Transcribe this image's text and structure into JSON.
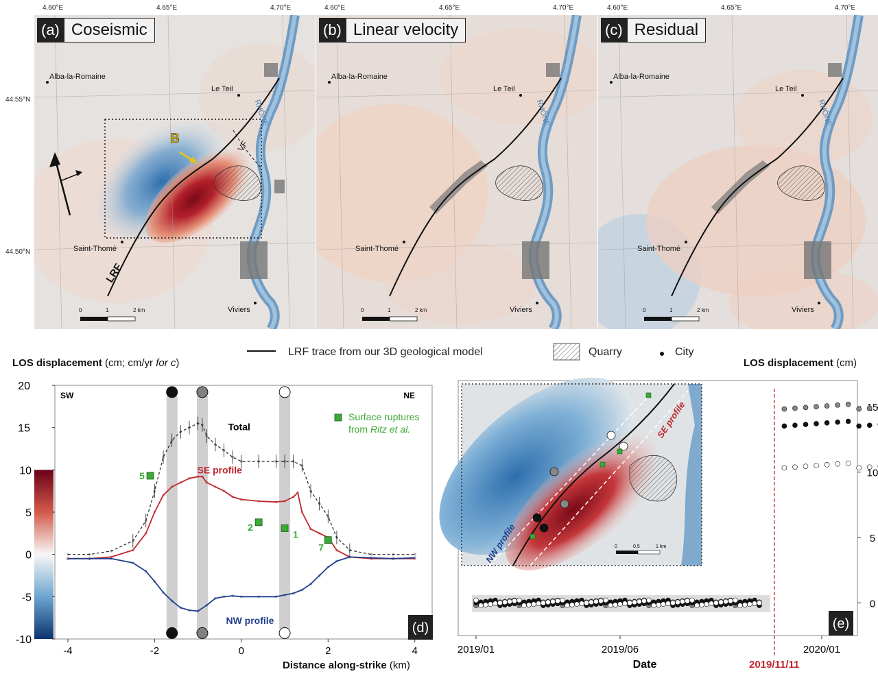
{
  "maps": {
    "lon_ticks": [
      "4.60°E",
      "4.65°E",
      "4.70°E"
    ],
    "lat_ticks": [
      "44.55°N",
      "44.50°N"
    ],
    "panels": [
      {
        "letter": "(a)",
        "title": "Coseismic"
      },
      {
        "letter": "(b)",
        "title": "Linear velocity"
      },
      {
        "letter": "(c)",
        "title": "Residual"
      }
    ],
    "cities": {
      "alba": "Alba-la-Romaine",
      "teil": "Le Teil",
      "thome": "Saint-Thomé",
      "viviers": "Viviers"
    },
    "river": "RHÔNE",
    "labels": {
      "lrf": "LRF",
      "vf": "VF",
      "b": "B"
    },
    "scale": {
      "zero": "0",
      "one": "1",
      "two": "2 km"
    }
  },
  "legend": {
    "trace": "LRF trace from our 3D geological model",
    "quarry": "Quarry",
    "city": "City"
  },
  "chart_d": {
    "panel": "(d)",
    "ylabel_main": "LOS displacement",
    "ylabel_unit": " (cm; cm/yr ",
    "ylabel_italic": "for c",
    "ylabel_close": ")",
    "xlabel_main": "Distance along-strike",
    "xlabel_unit": " (km)",
    "sw": "SW",
    "ne": "NE",
    "total": "Total",
    "se": "SE profile",
    "nw": "NW profile",
    "rupture_legend_1": "Surface ruptures",
    "rupture_legend_2": "from ",
    "rupture_legend_3": "Ritz et al.",
    "colorbar_ticks": [
      "10",
      "5",
      "0",
      "-5",
      "-10"
    ]
  },
  "chart_e": {
    "panel": "(e)",
    "ylabel_main": "LOS displacement",
    "ylabel_unit": " (cm)",
    "xlabel": "Date",
    "event": "2019/11/11",
    "inset": {
      "nw": "NW profile",
      "se": "SE profile",
      "scale": [
        "0",
        "0.5",
        "1 km"
      ]
    }
  },
  "colors": {
    "red": "#c0272d",
    "blue": "#1f3f8a",
    "green": "#3aaa35",
    "gray": "#cfcfcf"
  },
  "chart_data": [
    {
      "type": "line",
      "title": "",
      "xlabel": "Distance along-strike (km)",
      "ylabel": "LOS displacement (cm; cm/yr for c)",
      "xlim": [
        -4.3,
        4.4
      ],
      "ylim": [
        -10,
        20
      ],
      "xticks": [
        -4,
        -2,
        0,
        2,
        4
      ],
      "yticks": [
        -10,
        -5,
        0,
        5,
        10,
        15,
        20
      ],
      "series": [
        {
          "name": "Total",
          "x": [
            -4,
            -3.5,
            -3,
            -2.5,
            -2.2,
            -2,
            -1.8,
            -1.6,
            -1.4,
            -1.2,
            -1,
            -0.9,
            -0.8,
            -0.6,
            -0.4,
            -0.2,
            0,
            0.4,
            0.8,
            1,
            1.2,
            1.4,
            1.6,
            1.8,
            2,
            2.2,
            2.5,
            3,
            3.5,
            4
          ],
          "y": [
            0,
            0,
            0.4,
            1.6,
            4,
            7.5,
            11.5,
            13.5,
            14.5,
            15,
            15.5,
            15.3,
            14,
            13,
            12.3,
            11.5,
            11,
            11,
            11,
            11,
            11,
            10.5,
            7.5,
            6,
            4.5,
            2,
            0.5,
            0,
            0,
            0
          ]
        },
        {
          "name": "SE profile",
          "x": [
            -4,
            -3.5,
            -3,
            -2.5,
            -2.2,
            -2,
            -1.8,
            -1.6,
            -1.4,
            -1.2,
            -1,
            -0.9,
            -0.8,
            -0.6,
            -0.4,
            -0.2,
            0,
            0.4,
            0.8,
            1,
            1.2,
            1.3,
            1.4,
            1.6,
            1.8,
            2,
            2.2,
            2.5,
            3,
            3.5,
            4
          ],
          "y": [
            -0.5,
            -0.5,
            -0.3,
            0.5,
            2.5,
            5,
            7,
            8,
            8.5,
            9,
            9.2,
            9.2,
            8.5,
            8,
            7.5,
            6.8,
            6.5,
            6.3,
            6.2,
            6.3,
            6.8,
            7.3,
            5,
            3,
            2.5,
            2,
            0.5,
            -0.3,
            -0.5,
            -0.5,
            -0.5
          ]
        },
        {
          "name": "NW profile",
          "x": [
            -4,
            -3.5,
            -3,
            -2.5,
            -2.2,
            -2,
            -1.8,
            -1.6,
            -1.4,
            -1.2,
            -1,
            -0.8,
            -0.6,
            -0.4,
            -0.2,
            0,
            0.4,
            0.8,
            1,
            1.2,
            1.4,
            1.6,
            1.8,
            2,
            2.2,
            2.5,
            3,
            3.5,
            4
          ],
          "y": [
            -0.5,
            -0.5,
            -0.5,
            -1,
            -2,
            -3.2,
            -4.5,
            -5.5,
            -6.3,
            -6.6,
            -6.7,
            -6,
            -5.2,
            -5,
            -4.9,
            -5,
            -5,
            -5,
            -4.8,
            -4.6,
            -4.2,
            -3.5,
            -2.5,
            -1.5,
            -0.8,
            -0.3,
            -0.4,
            -0.5,
            -0.4
          ]
        }
      ],
      "ruptures": [
        {
          "label": "5",
          "x": -2.1,
          "y": 9.3
        },
        {
          "label": "2",
          "x": 0.4,
          "y": 3.8
        },
        {
          "label": "1",
          "x": 1.0,
          "y": 3.1
        },
        {
          "label": "7",
          "x": 2.0,
          "y": 1.7
        }
      ],
      "markers": [
        {
          "x": -1.6,
          "fill": "black"
        },
        {
          "x": -0.9,
          "fill": "gray"
        },
        {
          "x": 1.0,
          "fill": "white"
        }
      ]
    },
    {
      "type": "scatter",
      "title": "",
      "xlabel": "Date",
      "ylabel": "LOS displacement (cm)",
      "ylim": [
        -2.5,
        17
      ],
      "yticks": [
        0,
        5,
        10,
        15
      ],
      "xticks": [
        "2019/01",
        "2019/06",
        "2020/01"
      ],
      "event_date": "2019/11/11",
      "series": [
        {
          "name": "",
          "marker": "gray",
          "pre": 0,
          "post": 15
        },
        {
          "name": "",
          "marker": "black",
          "pre": 0,
          "post": 13.7
        },
        {
          "name": "",
          "marker": "white",
          "pre": 0,
          "post": 10.5
        }
      ]
    }
  ]
}
